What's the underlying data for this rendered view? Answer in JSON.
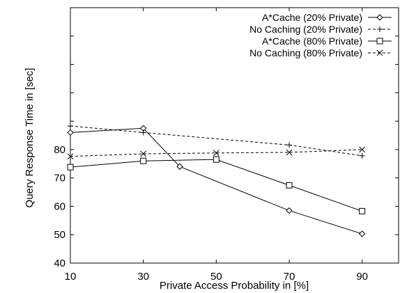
{
  "chart_data": {
    "type": "line",
    "title": "",
    "xlabel": "Private Access Probability in [%]",
    "ylabel": "Query Response Time in [sec]",
    "xlim": [
      10,
      100
    ],
    "ylim": [
      40,
      130
    ],
    "x_ticks": [
      10,
      30,
      50,
      70,
      90
    ],
    "x_tick_labels": [
      "10",
      "30",
      "50",
      "70",
      "90"
    ],
    "y_ticks": [
      40,
      50,
      60,
      70,
      80
    ],
    "y_tick_labels": [
      "40",
      "50",
      "60",
      "70",
      "80"
    ],
    "grid": false,
    "legend_position": "top-right",
    "series": [
      {
        "name": "A*Cache (20% Private)",
        "marker": "diamond",
        "dash": "solid",
        "x": [
          10,
          30,
          40,
          70,
          90
        ],
        "values": [
          86.0,
          87.5,
          74.0,
          58.5,
          50.3
        ]
      },
      {
        "name": "No Caching (20% Private)",
        "marker": "plus",
        "dash": "dashed",
        "x": [
          10,
          30,
          70,
          90
        ],
        "values": [
          88.3,
          86.0,
          81.6,
          77.8
        ]
      },
      {
        "name": "A*Cache (80% Private)",
        "marker": "square",
        "dash": "solid",
        "x": [
          10,
          30,
          50,
          70,
          90
        ],
        "values": [
          73.8,
          76.0,
          76.5,
          67.4,
          58.3
        ]
      },
      {
        "name": "No Caching (80% Private)",
        "marker": "cross",
        "dash": "dashed",
        "x": [
          10,
          30,
          50,
          70,
          90
        ],
        "values": [
          77.6,
          78.5,
          78.8,
          79.0,
          80.0
        ]
      }
    ]
  }
}
